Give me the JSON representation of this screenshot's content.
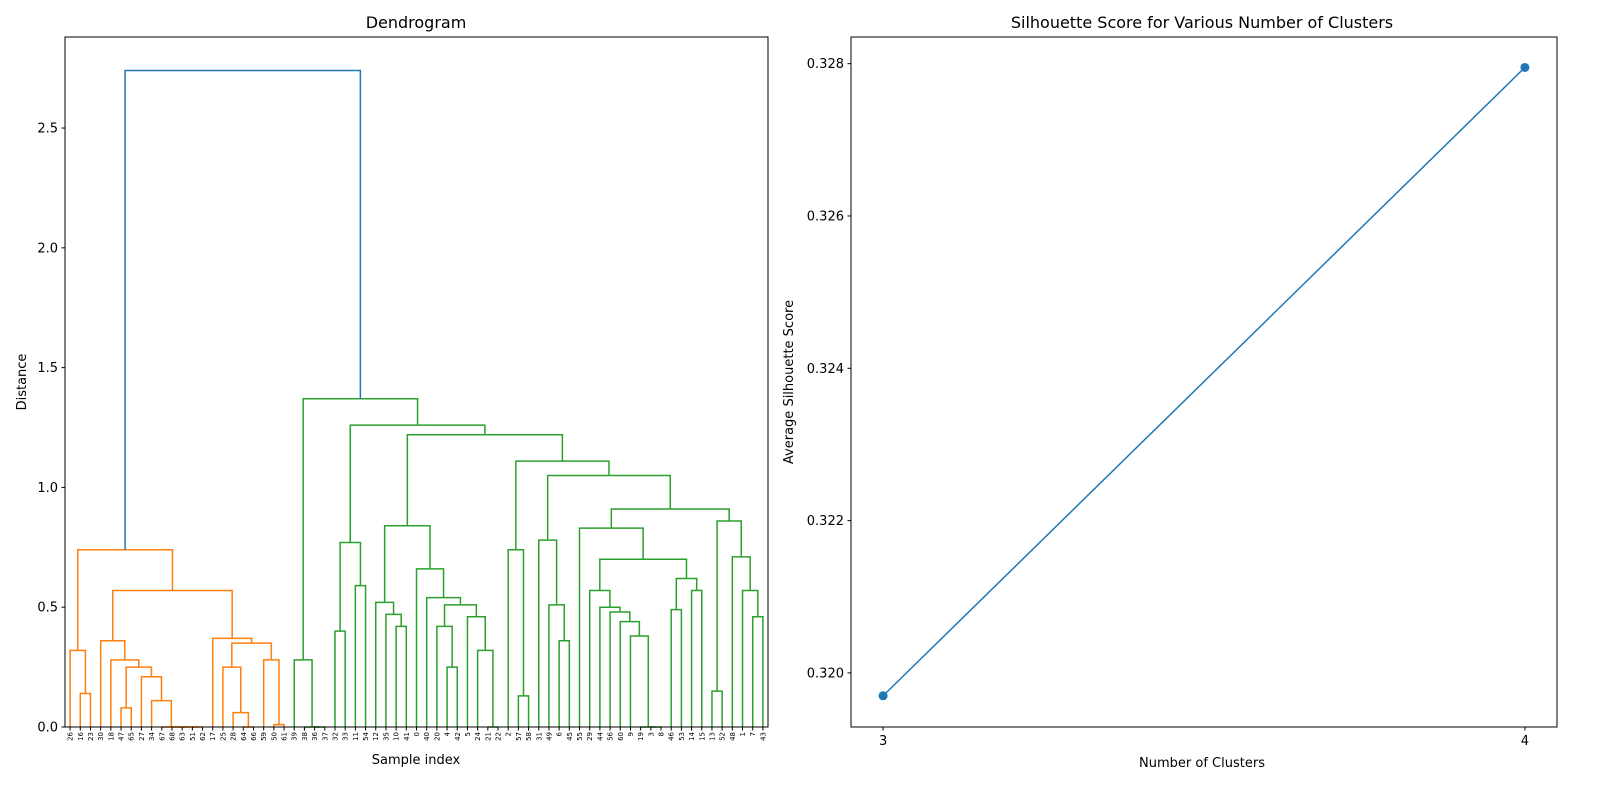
{
  "chart_data": [
    {
      "type": "dendrogram",
      "title": "Dendrogram",
      "xlabel": "Sample index",
      "ylabel": "Distance",
      "ylim": [
        0,
        2.88
      ],
      "yticks": [
        "0.0",
        "0.5",
        "1.0",
        "1.5",
        "2.0",
        "2.5"
      ],
      "colors": {
        "above_threshold": "#1f77b4",
        "clusters": [
          "#ff7f0e",
          "#2ca02c"
        ]
      },
      "tree": [
        2.74,
        [
          0.74,
          [
            0.32,
            "26",
            [
              0.14,
              "16",
              "23"
            ]
          ],
          [
            0.57,
            [
              0.36,
              "30",
              [
                0.28,
                "18",
                [
                  0.25,
                  [
                    0.08,
                    "47",
                    "65"
                  ],
                  [
                    0.21,
                    "27",
                    [
                      0.11,
                      "34",
                      [
                        0,
                        "67",
                        [
                          0,
                          "68",
                          [
                            0,
                            "63",
                            [
                              0,
                              "51",
                              "62"
                            ]
                          ]
                        ]
                      ]
                    ]
                  ]
                ]
              ]
            ],
            [
              0.37,
              "17",
              [
                0.35,
                [
                  0.25,
                  "25",
                  [
                    0.06,
                    "28",
                    [
                      0,
                      "64",
                      "66"
                    ]
                  ]
                ],
                [
                  0.28,
                  "59",
                  [
                    0.01,
                    "50",
                    "61"
                  ]
                ]
              ]
            ]
          ]
        ],
        [
          1.37,
          [
            0.28,
            "39",
            [
              0,
              "38",
              [
                0,
                "36",
                "37"
              ]
            ]
          ],
          [
            1.26,
            [
              0.77,
              [
                0.4,
                "32",
                "33"
              ],
              [
                0.59,
                "11",
                "54"
              ]
            ],
            [
              1.22,
              [
                0.84,
                [
                  0.52,
                  "12",
                  [
                    0.47,
                    "35",
                    [
                      0.42,
                      "10",
                      "41"
                    ]
                  ]
                ],
                [
                  0.66,
                  "0",
                  [
                    0.54,
                    "40",
                    [
                      0.51,
                      [
                        0.42,
                        "20",
                        [
                          0.25,
                          "4",
                          "42"
                        ]
                      ],
                      [
                        0.46,
                        "5",
                        [
                          0.32,
                          "24",
                          [
                            0,
                            "21",
                            "22"
                          ]
                        ]
                      ]
                    ]
                  ]
                ]
              ],
              [
                1.11,
                [
                  0.74,
                  "2",
                  [
                    0.13,
                    "57",
                    "58"
                  ]
                ],
                [
                  1.05,
                  [
                    0.78,
                    "31",
                    [
                      0.51,
                      "49",
                      [
                        0.36,
                        "6",
                        "45"
                      ]
                    ]
                  ],
                  [
                    0.91,
                    [
                      0.83,
                      "55",
                      [
                        0.7,
                        [
                          0.57,
                          "29",
                          [
                            0.5,
                            "44",
                            [
                              0.48,
                              "56",
                              [
                                0.44,
                                "60",
                                [
                                  0.38,
                                  "9",
                                  [
                                    0,
                                    "19",
                                    [
                                      0,
                                      "3",
                                      "8"
                                    ]
                                  ]
                                ]
                              ]
                            ]
                          ]
                        ],
                        [
                          0.62,
                          [
                            0.49,
                            "46",
                            "53"
                          ],
                          [
                            0.57,
                            "14",
                            "15"
                          ]
                        ]
                      ]
                    ],
                    [
                      0.86,
                      [
                        0.15,
                        "13",
                        "52"
                      ],
                      [
                        0.71,
                        "48",
                        [
                          0.57,
                          "1",
                          [
                            0.46,
                            "7",
                            "43"
                          ]
                        ]
                      ]
                    ]
                  ]
                ]
              ]
            ]
          ]
        ]
      ]
    },
    {
      "type": "line",
      "title": "Silhouette Score for Various Number of Clusters",
      "xlabel": "Number of Clusters",
      "ylabel": "Average Silhouette Score",
      "x": [
        3,
        4
      ],
      "y": [
        0.3197,
        0.32795
      ],
      "xlim": [
        2.95,
        4.05
      ],
      "ylim": [
        0.31929,
        0.32835
      ],
      "xticks": [
        "3",
        "4"
      ],
      "yticks": [
        "0.320",
        "0.322",
        "0.324",
        "0.326",
        "0.328"
      ],
      "color": "#1f77b4",
      "marker": "circle",
      "grid": false
    }
  ]
}
